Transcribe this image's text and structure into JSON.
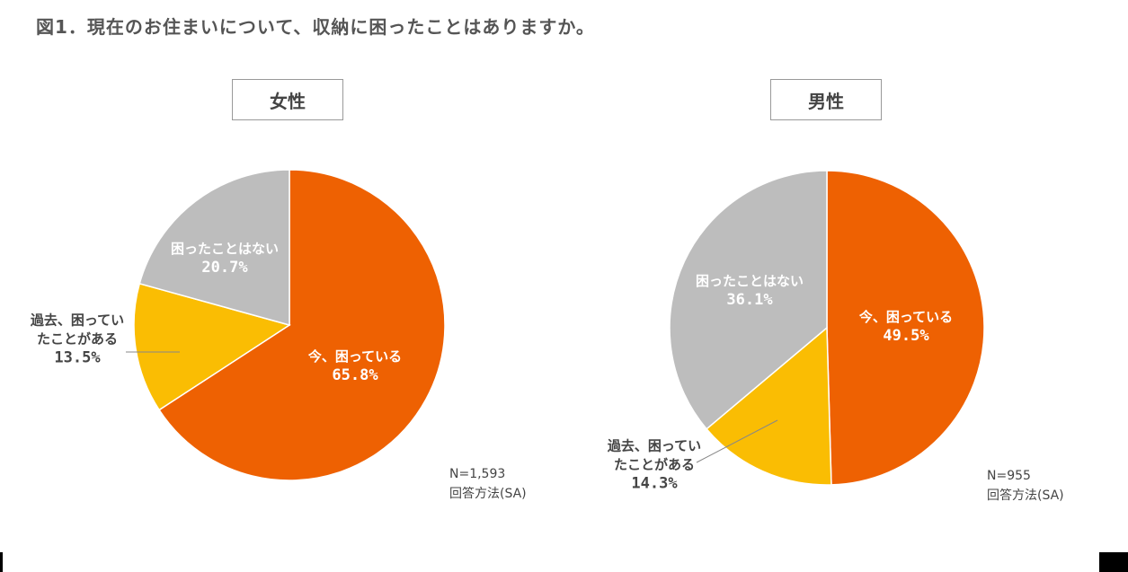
{
  "title": "図1．現在のお住まいについて、収納に困ったことはありますか。",
  "chart_data": [
    {
      "type": "pie",
      "title": "女性",
      "categories": [
        "今、困っている",
        "過去、困っていたことがある",
        "困ったことはない"
      ],
      "labels": [
        "今、困っている",
        "過去、困ってい\nたことがある",
        "困ったことはない"
      ],
      "values": [
        65.8,
        13.5,
        20.7
      ],
      "value_labels": [
        "65.8%",
        "13.5%",
        "20.7%"
      ],
      "colors": [
        "#EE6102",
        "#FABD03",
        "#BDBDBD"
      ],
      "start": "12 o'clock, clockwise",
      "sample_size": "N=1,593",
      "method": "回答方法(SA)"
    },
    {
      "type": "pie",
      "title": "男性",
      "categories": [
        "今、困っている",
        "過去、困っていたことがある",
        "困ったことはない"
      ],
      "labels": [
        "今、困っている",
        "過去、困ってい\nたことがある",
        "困ったことはない"
      ],
      "values": [
        49.5,
        14.3,
        36.1
      ],
      "value_labels": [
        "49.5%",
        "14.3%",
        "36.1%"
      ],
      "colors": [
        "#EE6102",
        "#FABD03",
        "#BDBDBD"
      ],
      "start": "12 o'clock, clockwise",
      "sample_size": "N=955",
      "method": "回答方法(SA)"
    }
  ]
}
